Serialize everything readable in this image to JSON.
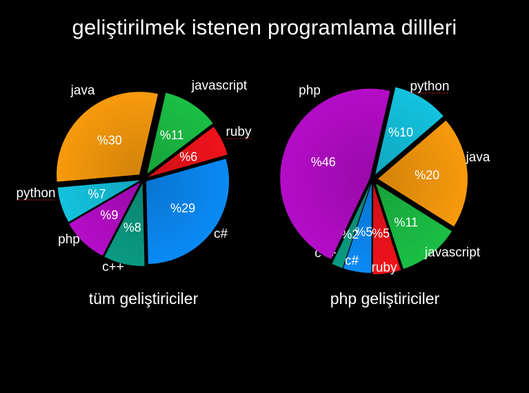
{
  "title": "geliştirilmek istenen programlama dillleri",
  "chart_data": [
    {
      "type": "pie",
      "caption": "tüm geliştiriciler",
      "slices": [
        {
          "label": "javascript",
          "value": 11,
          "pct_label": "%11",
          "color": "#1bbf45"
        },
        {
          "label": "ruby",
          "value": 6,
          "pct_label": "%6",
          "color": "#f0131b"
        },
        {
          "label": "c#",
          "value": 29,
          "pct_label": "%29",
          "color": "#0a8af5"
        },
        {
          "label": "c++",
          "value": 8,
          "pct_label": "%8",
          "color": "#0a9a82"
        },
        {
          "label": "php",
          "value": 9,
          "pct_label": "%9",
          "color": "#b40cc7"
        },
        {
          "label": "python",
          "value": 7,
          "pct_label": "%7",
          "color": "#13c3df"
        },
        {
          "label": "java",
          "value": 30,
          "pct_label": "%30",
          "color": "#f79a0c"
        }
      ]
    },
    {
      "type": "pie",
      "caption": "php geliştiriciler",
      "slices": [
        {
          "label": "python",
          "value": 10,
          "pct_label": "%10",
          "color": "#13c3df"
        },
        {
          "label": "java",
          "value": 20,
          "pct_label": "%20",
          "color": "#f79a0c"
        },
        {
          "label": "javascript",
          "value": 11,
          "pct_label": "%11",
          "color": "#1bbf45"
        },
        {
          "label": "ruby",
          "value": 5,
          "pct_label": "%5",
          "color": "#f0131b"
        },
        {
          "label": "c#",
          "value": 5,
          "pct_label": "%5",
          "color": "#0a8af5"
        },
        {
          "label": "c++",
          "value": 2,
          "pct_label": "%2",
          "color": "#0a9a82"
        },
        {
          "label": "php",
          "value": 46,
          "pct_label": "%46",
          "color": "#b40cc7"
        }
      ]
    }
  ]
}
